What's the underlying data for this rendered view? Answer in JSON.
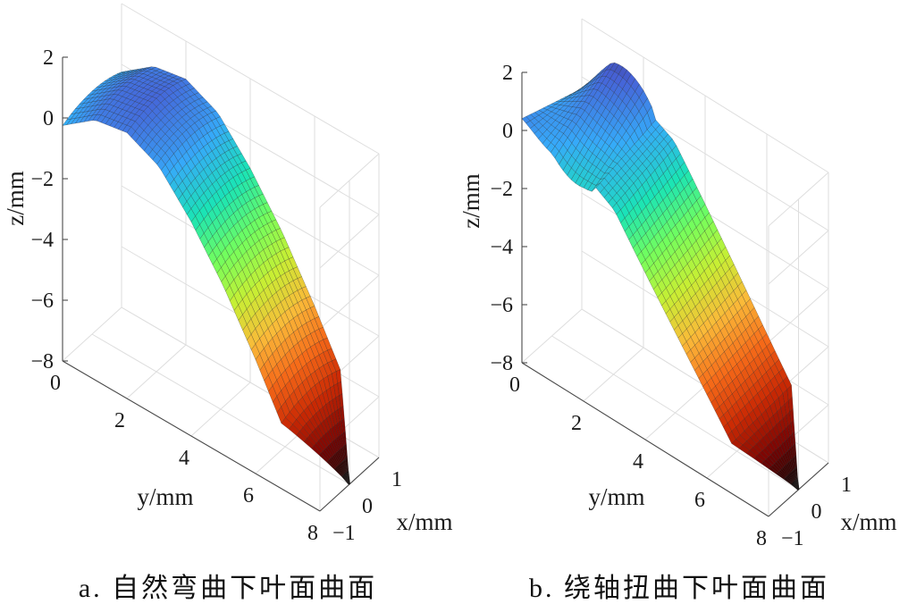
{
  "chart_data": [
    {
      "type": "surface",
      "caption": "a. 自然弯曲下叶面曲面",
      "xlabel": "x/mm",
      "ylabel": "y/mm",
      "zlabel": "z/mm",
      "xlim": [
        -1,
        1
      ],
      "ylim": [
        0,
        8
      ],
      "zlim": [
        -8,
        2
      ],
      "x_ticks": [
        "−1",
        "0",
        "1"
      ],
      "y_ticks": [
        "0",
        "2",
        "4",
        "6",
        "8"
      ],
      "z_ticks": [
        "2",
        "0",
        "−2",
        "−4",
        "−6",
        "−8"
      ],
      "grid": true,
      "colormap": "turbo",
      "colormap_stops": [
        "#30123b",
        "#4662d7",
        "#36aaf9",
        "#1ae4b6",
        "#72fe5e",
        "#c7ef34",
        "#faba39",
        "#f66b19",
        "#cb2a04",
        "#7a0403",
        "#000000"
      ],
      "surface_profile": {
        "y": [
          0,
          1,
          2,
          3,
          4,
          5,
          6,
          7,
          8
        ],
        "z": [
          0.0,
          0.8,
          1.0,
          0.5,
          -0.7,
          -2.2,
          -4.0,
          -6.0,
          -8.0
        ]
      }
    },
    {
      "type": "surface",
      "caption": "b. 绕轴扭曲下叶面曲面",
      "xlabel": "x/mm",
      "ylabel": "y/mm",
      "zlabel": "z/mm",
      "xlim": [
        -1,
        1
      ],
      "ylim": [
        0,
        8
      ],
      "zlim": [
        -8,
        2
      ],
      "x_ticks": [
        "−1",
        "0",
        "1"
      ],
      "y_ticks": [
        "0",
        "2",
        "4",
        "6",
        "8"
      ],
      "z_ticks": [
        "2",
        "0",
        "−2",
        "−4",
        "−6",
        "−8"
      ],
      "grid": true,
      "colormap": "turbo",
      "colormap_stops": [
        "#30123b",
        "#4662d7",
        "#36aaf9",
        "#1ae4b6",
        "#72fe5e",
        "#c7ef34",
        "#faba39",
        "#f66b19",
        "#cb2a04",
        "#7a0403",
        "#000000"
      ],
      "surface_profile": {
        "y": [
          0,
          1,
          2,
          3,
          4,
          5,
          6,
          7,
          8
        ],
        "z": [
          0.0,
          0.5,
          0.1,
          -0.5,
          -2.0,
          -3.5,
          -5.0,
          -6.5,
          -8.0
        ]
      }
    }
  ]
}
